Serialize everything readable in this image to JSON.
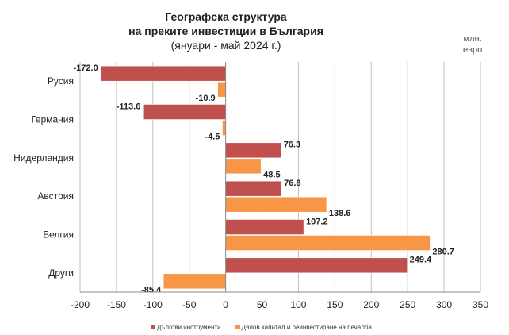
{
  "chart_data": {
    "type": "bar",
    "orientation": "horizontal",
    "title": [
      "Географска структура",
      "на преките инвестиции в България",
      "(януари - май 2024 г.)"
    ],
    "unit": [
      "млн.",
      "евро"
    ],
    "categories": [
      "Русия",
      "Германия",
      "Нидерландия",
      "Австрия",
      "Белгия",
      "Други"
    ],
    "series": [
      {
        "name": "Дългови инструменти",
        "color": "#c0504d",
        "values": [
          -172.0,
          -113.6,
          76.3,
          76.8,
          107.2,
          249.4
        ]
      },
      {
        "name": "Дялов капитал и реинвестиране на печалба",
        "color": "#f79646",
        "values": [
          -10.9,
          -4.5,
          48.5,
          138.6,
          280.7,
          -85.4
        ]
      }
    ],
    "xlim": [
      -200,
      350
    ],
    "xticks": [
      -200,
      -150,
      -100,
      -50,
      0,
      50,
      100,
      150,
      200,
      250,
      300,
      350
    ],
    "grid": "vertical",
    "legend": "bottom"
  }
}
